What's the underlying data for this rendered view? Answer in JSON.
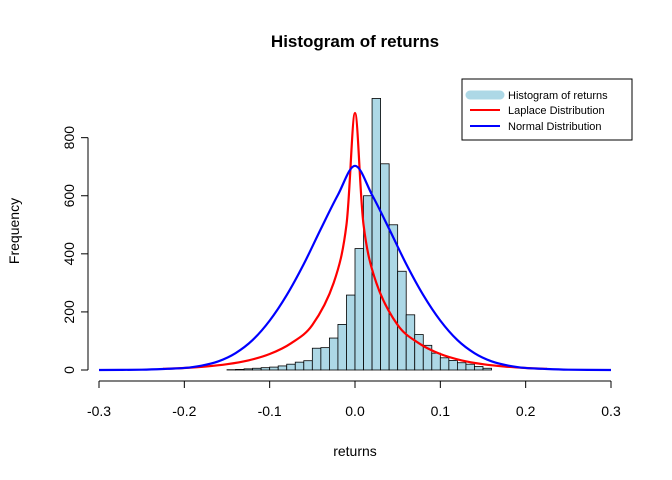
{
  "chart_data": {
    "type": "bar",
    "title": "Histogram of returns",
    "xlabel": "returns",
    "ylabel": "Frequency",
    "xlim": [
      -0.3,
      0.3
    ],
    "ylim": [
      0,
      940
    ],
    "x_ticks": [
      "-0.3",
      "-0.2",
      "-0.1",
      "0.0",
      "0.1",
      "0.2",
      "0.3"
    ],
    "y_ticks": [
      "0",
      "200",
      "400",
      "600",
      "800"
    ],
    "grid": false,
    "legend_position": "top-right",
    "histogram": {
      "name": "Histogram of returns",
      "color": "#add8e6",
      "bin_width": 0.01,
      "bin_start": -0.15,
      "counts": [
        1,
        2,
        4,
        6,
        8,
        10,
        14,
        20,
        27,
        32,
        75,
        77,
        110,
        157,
        258,
        418,
        600,
        935,
        710,
        500,
        340,
        190,
        122,
        85,
        58,
        42,
        33,
        25,
        20,
        12,
        6
      ]
    },
    "series": [
      {
        "name": "Laplace Distribution",
        "type": "line",
        "color": "#ff0000",
        "x": [
          -0.225,
          -0.2,
          -0.175,
          -0.15,
          -0.125,
          -0.1,
          -0.075,
          -0.05,
          -0.025,
          -0.01,
          0.0,
          0.01,
          0.025,
          0.05,
          0.075,
          0.1,
          0.125,
          0.15,
          0.175,
          0.2,
          0.225
        ],
        "y": [
          4,
          7,
          12,
          20,
          33,
          55,
          92,
          155,
          300,
          500,
          885,
          500,
          300,
          155,
          92,
          55,
          33,
          20,
          12,
          7,
          4
        ]
      },
      {
        "name": "Normal Distribution",
        "type": "line",
        "color": "#0000ff",
        "x": [
          -0.3,
          -0.25,
          -0.22,
          -0.2,
          -0.18,
          -0.16,
          -0.14,
          -0.12,
          -0.1,
          -0.08,
          -0.06,
          -0.04,
          -0.02,
          0.0,
          0.02,
          0.04,
          0.06,
          0.08,
          0.1,
          0.12,
          0.14,
          0.16,
          0.18,
          0.2,
          0.22,
          0.25,
          0.3
        ],
        "y": [
          0,
          1,
          4,
          7,
          15,
          30,
          58,
          103,
          170,
          258,
          365,
          486,
          603,
          703,
          603,
          486,
          365,
          258,
          170,
          103,
          58,
          30,
          15,
          7,
          4,
          1,
          0
        ]
      }
    ],
    "legend": [
      {
        "label": "Histogram of returns",
        "color": "#add8e6"
      },
      {
        "label": "Laplace Distribution",
        "color": "#ff0000"
      },
      {
        "label": "Normal Distribution",
        "color": "#0000ff"
      }
    ]
  }
}
